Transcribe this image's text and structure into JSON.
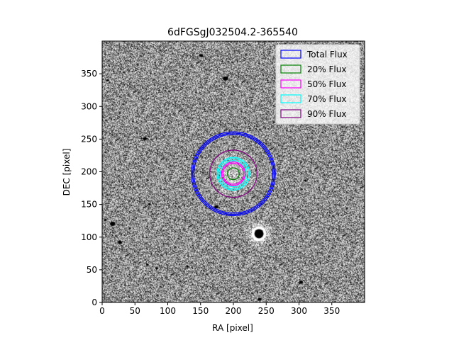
{
  "chart_data": {
    "type": "image",
    "title": "6dFGSgJ032504.2-365540",
    "xlabel": "RA [pixel]",
    "ylabel": "DEC [pixel]",
    "xlim": [
      0,
      400
    ],
    "ylim": [
      0,
      400
    ],
    "xticks": [
      0,
      50,
      100,
      150,
      200,
      250,
      300,
      350
    ],
    "yticks": [
      0,
      50,
      100,
      150,
      200,
      250,
      300,
      350
    ],
    "image": {
      "colormap": "gray",
      "description_free": true,
      "bright_sources": [
        {
          "x": 239,
          "y": 106,
          "r": 7,
          "halo": true
        },
        {
          "x": 200,
          "y": 197,
          "r": 4,
          "halo": false
        }
      ],
      "dark_blobs": [
        {
          "x": 151,
          "y": 378,
          "r": 3
        },
        {
          "x": 188,
          "y": 343,
          "r": 4
        },
        {
          "x": 65,
          "y": 251,
          "r": 3
        },
        {
          "x": 174,
          "y": 147,
          "r": 3
        },
        {
          "x": 72,
          "y": 151,
          "r": 2
        },
        {
          "x": 16,
          "y": 121,
          "r": 4
        },
        {
          "x": 27,
          "y": 93,
          "r": 3
        },
        {
          "x": 69,
          "y": 59,
          "r": 2
        },
        {
          "x": 83,
          "y": 53,
          "r": 2
        },
        {
          "x": 130,
          "y": 56,
          "r": 2
        },
        {
          "x": 240,
          "y": 6,
          "r": 3
        },
        {
          "x": 303,
          "y": 32,
          "r": 3
        },
        {
          "x": 310,
          "y": 187,
          "r": 2
        },
        {
          "x": 5,
          "y": 127,
          "r": 2
        },
        {
          "x": 8,
          "y": 340,
          "r": 2
        },
        {
          "x": 355,
          "y": 105,
          "r": 1
        }
      ]
    },
    "apertures": [
      {
        "name": "Total Flux",
        "color": "#0000ff",
        "cx": 200,
        "cy": 197,
        "radii": [
          60,
          62,
          64
        ]
      },
      {
        "name": "20% Flux",
        "color": "#008000",
        "cx": 200,
        "cy": 197,
        "radii": [
          9
        ]
      },
      {
        "name": "50% Flux",
        "color": "#ff00ff",
        "cx": 200,
        "cy": 197,
        "radii": [
          16,
          18
        ]
      },
      {
        "name": "70% Flux",
        "color": "#00ffff",
        "cx": 200,
        "cy": 197,
        "radii": [
          20,
          23,
          25
        ]
      },
      {
        "name": "90% Flux",
        "color": "#800080",
        "cx": 200,
        "cy": 197,
        "radii": [
          36
        ]
      }
    ],
    "legend": {
      "placement": "top-right",
      "entries": [
        "Total Flux",
        "20% Flux",
        "50% Flux",
        "70% Flux",
        "90% Flux"
      ]
    },
    "grid": false
  }
}
